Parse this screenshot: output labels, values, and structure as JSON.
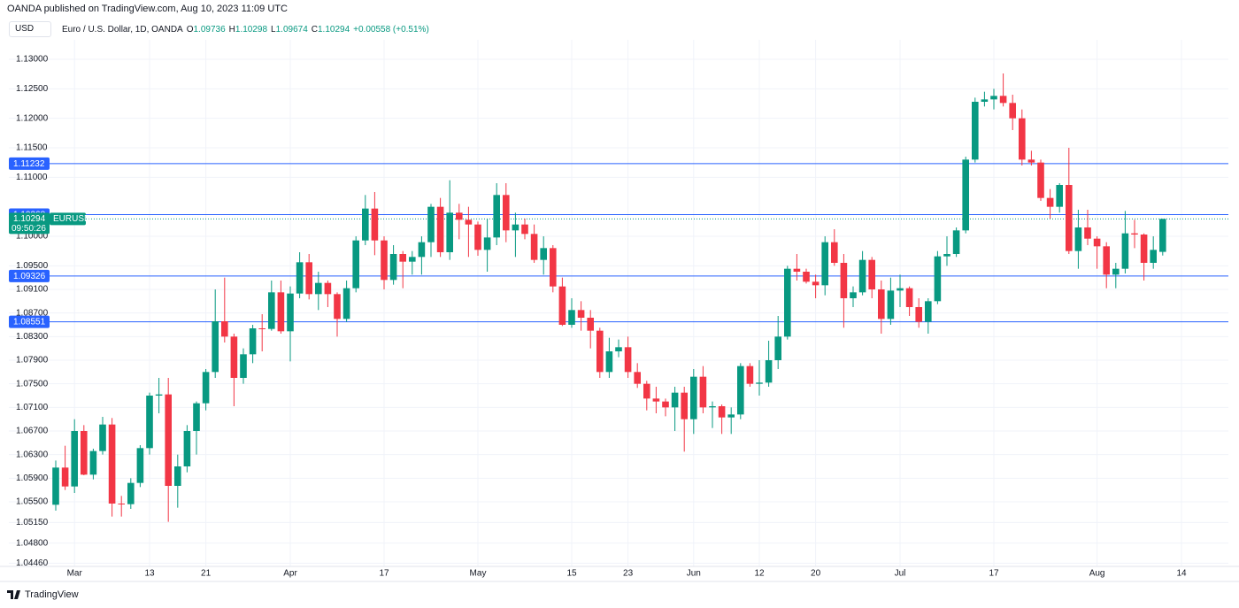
{
  "header": {
    "publisher": "OANDA published on TradingView.com, Aug 10, 2023 11:09 UTC",
    "currency": "USD",
    "symbol_description": "Euro / U.S. Dollar, 1D, OANDA",
    "ohlc_labels": [
      "O",
      "H",
      "L",
      "C"
    ],
    "change": "+0.00558 (+0.51%)"
  },
  "chart_data": {
    "type": "candlestick",
    "up_color": "#089981",
    "down_color": "#f23645",
    "grid": true,
    "ohlc": [
      [
        1.0545,
        1.062,
        1.0535,
        1.0608
      ],
      [
        1.0608,
        1.0645,
        1.057,
        1.0576
      ],
      [
        1.0576,
        1.069,
        1.0565,
        1.067
      ],
      [
        1.067,
        1.068,
        1.0595,
        1.0596
      ],
      [
        1.0596,
        1.064,
        1.0588,
        1.0636
      ],
      [
        1.0636,
        1.0694,
        1.063,
        1.0681
      ],
      [
        1.0681,
        1.0692,
        1.0525,
        1.0547
      ],
      [
        1.0547,
        1.056,
        1.0525,
        1.0546
      ],
      [
        1.0546,
        1.059,
        1.0538,
        1.0582
      ],
      [
        1.0582,
        1.0646,
        1.0575,
        1.0641
      ],
      [
        1.0641,
        1.0735,
        1.063,
        1.073
      ],
      [
        1.073,
        1.076,
        1.07,
        1.0732
      ],
      [
        1.0732,
        1.076,
        1.0516,
        1.0577
      ],
      [
        1.0577,
        1.063,
        1.054,
        1.061
      ],
      [
        1.061,
        1.068,
        1.06,
        1.067
      ],
      [
        1.067,
        1.072,
        1.063,
        1.0717
      ],
      [
        1.0717,
        1.0775,
        1.0705,
        1.077
      ],
      [
        1.077,
        1.091,
        1.076,
        1.0856
      ],
      [
        1.0856,
        1.093,
        1.082,
        1.083
      ],
      [
        1.083,
        1.0835,
        1.0712,
        1.076
      ],
      [
        1.076,
        1.081,
        1.075,
        1.08
      ],
      [
        1.08,
        1.085,
        1.0785,
        1.0844
      ],
      [
        1.0844,
        1.0868,
        1.0805,
        1.0843
      ],
      [
        1.0843,
        1.0925,
        1.084,
        1.0905
      ],
      [
        1.0905,
        1.0925,
        1.0835,
        1.0839
      ],
      [
        1.0839,
        1.0915,
        1.0788,
        1.0903
      ],
      [
        1.0903,
        1.0973,
        1.0895,
        1.0956
      ],
      [
        1.0956,
        1.097,
        1.0893,
        1.0902
      ],
      [
        1.0902,
        1.094,
        1.0875,
        1.0921
      ],
      [
        1.0921,
        1.0925,
        1.088,
        1.0902
      ],
      [
        1.0902,
        1.0905,
        1.083,
        1.086
      ],
      [
        1.086,
        1.0925,
        1.0855,
        1.0912
      ],
      [
        1.0912,
        1.1,
        1.0905,
        1.0993
      ],
      [
        1.0993,
        1.107,
        1.0985,
        1.1047
      ],
      [
        1.1047,
        1.1075,
        1.0968,
        1.0993
      ],
      [
        1.0993,
        1.1,
        1.091,
        1.0926
      ],
      [
        1.0926,
        1.0985,
        1.0918,
        1.097
      ],
      [
        1.097,
        1.0975,
        1.0912,
        1.0957
      ],
      [
        1.0957,
        1.0975,
        1.0935,
        1.0965
      ],
      [
        1.0965,
        1.1,
        1.0935,
        1.099
      ],
      [
        1.099,
        1.1055,
        1.0965,
        1.105
      ],
      [
        1.105,
        1.1065,
        1.0965,
        1.0973
      ],
      [
        1.0973,
        1.1095,
        1.096,
        1.104
      ],
      [
        1.104,
        1.1055,
        1.0995,
        1.1028
      ],
      [
        1.1028,
        1.105,
        1.0965,
        1.102
      ],
      [
        1.102,
        1.1025,
        1.0967,
        1.0977
      ],
      [
        1.0977,
        1.103,
        1.094,
        1.0998
      ],
      [
        1.0998,
        1.109,
        1.0985,
        1.107
      ],
      [
        1.107,
        1.109,
        1.099,
        1.101
      ],
      [
        1.101,
        1.104,
        1.0965,
        1.102
      ],
      [
        1.102,
        1.103,
        1.0995,
        1.1004
      ],
      [
        1.1004,
        1.102,
        1.0955,
        1.096
      ],
      [
        1.096,
        1.1,
        1.0935,
        1.098
      ],
      [
        1.098,
        1.0985,
        1.0905,
        1.0915
      ],
      [
        1.0915,
        1.093,
        1.0848,
        1.085
      ],
      [
        1.085,
        1.0895,
        1.0845,
        1.0875
      ],
      [
        1.0875,
        1.089,
        1.084,
        1.0862
      ],
      [
        1.0862,
        1.0875,
        1.081,
        1.084
      ],
      [
        1.084,
        1.0845,
        1.076,
        1.077
      ],
      [
        1.077,
        1.0828,
        1.076,
        1.0805
      ],
      [
        1.0805,
        1.0825,
        1.0795,
        1.0812
      ],
      [
        1.0812,
        1.083,
        1.076,
        1.077
      ],
      [
        1.077,
        1.0785,
        1.0743,
        1.075
      ],
      [
        1.075,
        1.0755,
        1.0705,
        1.0725
      ],
      [
        1.0725,
        1.0745,
        1.07,
        1.072
      ],
      [
        1.072,
        1.0725,
        1.0695,
        1.071
      ],
      [
        1.071,
        1.0745,
        1.067,
        1.0735
      ],
      [
        1.0735,
        1.0745,
        1.0635,
        1.069
      ],
      [
        1.069,
        1.0775,
        1.0665,
        1.0762
      ],
      [
        1.0762,
        1.078,
        1.07,
        1.071
      ],
      [
        1.071,
        1.072,
        1.0675,
        1.0712
      ],
      [
        1.0712,
        1.0715,
        1.0665,
        1.0693
      ],
      [
        1.0693,
        1.071,
        1.0665,
        1.0698
      ],
      [
        1.0698,
        1.0785,
        1.069,
        1.078
      ],
      [
        1.078,
        1.0785,
        1.0745,
        1.075
      ],
      [
        1.075,
        1.079,
        1.073,
        1.0752
      ],
      [
        1.0752,
        1.0823,
        1.0745,
        1.079
      ],
      [
        1.079,
        1.0865,
        1.0775,
        1.083
      ],
      [
        1.083,
        1.095,
        1.0825,
        1.0945
      ],
      [
        1.0945,
        1.097,
        1.0925,
        1.094
      ],
      [
        1.094,
        1.0945,
        1.092,
        1.0923
      ],
      [
        1.0923,
        1.0935,
        1.0895,
        1.0917
      ],
      [
        1.0917,
        1.1,
        1.09,
        1.099
      ],
      [
        1.099,
        1.1012,
        1.095,
        1.0955
      ],
      [
        1.0955,
        1.097,
        1.0845,
        1.0895
      ],
      [
        1.0895,
        1.0915,
        1.088,
        1.0905
      ],
      [
        1.0905,
        1.0975,
        1.09,
        1.096
      ],
      [
        1.096,
        1.0965,
        1.0895,
        1.091
      ],
      [
        1.091,
        1.0925,
        1.0835,
        1.086
      ],
      [
        1.086,
        1.093,
        1.085,
        1.0908
      ],
      [
        1.0908,
        1.0935,
        1.088,
        1.0912
      ],
      [
        1.0912,
        1.0915,
        1.0865,
        1.088
      ],
      [
        1.088,
        1.0895,
        1.0845,
        1.0855
      ],
      [
        1.0855,
        1.0895,
        1.0835,
        1.089
      ],
      [
        1.089,
        1.0975,
        1.0885,
        1.0966
      ],
      [
        1.0966,
        1.1,
        1.095,
        1.097
      ],
      [
        1.097,
        1.1015,
        1.0965,
        1.101
      ],
      [
        1.101,
        1.1135,
        1.1005,
        1.113
      ],
      [
        1.113,
        1.1235,
        1.1125,
        1.1228
      ],
      [
        1.1228,
        1.1245,
        1.122,
        1.1232
      ],
      [
        1.1232,
        1.125,
        1.1215,
        1.1238
      ],
      [
        1.1238,
        1.1276,
        1.122,
        1.1226
      ],
      [
        1.1226,
        1.124,
        1.118,
        1.12
      ],
      [
        1.12,
        1.1215,
        1.112,
        1.113
      ],
      [
        1.113,
        1.1145,
        1.112,
        1.1125
      ],
      [
        1.1125,
        1.113,
        1.106,
        1.1065
      ],
      [
        1.1065,
        1.108,
        1.103,
        1.105
      ],
      [
        1.105,
        1.109,
        1.104,
        1.1087
      ],
      [
        1.1087,
        1.115,
        1.097,
        1.0975
      ],
      [
        1.0975,
        1.1045,
        1.0945,
        1.1015
      ],
      [
        1.1015,
        1.1045,
        1.0985,
        1.0996
      ],
      [
        1.0996,
        1.1,
        1.0945,
        1.0983
      ],
      [
        1.0983,
        1.099,
        1.0912,
        1.0935
      ],
      [
        1.0935,
        1.0955,
        1.0912,
        1.0945
      ],
      [
        1.0945,
        1.1043,
        1.0937,
        1.1005
      ],
      [
        1.1005,
        1.1028,
        1.098,
        1.1003
      ],
      [
        1.1003,
        1.1005,
        1.0925,
        1.0955
      ],
      [
        1.0955,
        1.1,
        1.0945,
        1.0977
      ],
      [
        1.09736,
        1.10298,
        1.09674,
        1.10294
      ]
    ],
    "ylim": [
      1.0418,
      1.1333
    ],
    "yticks": [
      {
        "value": 1.13,
        "label": "1.13000"
      },
      {
        "value": 1.125,
        "label": "1.12500"
      },
      {
        "value": 1.12,
        "label": "1.12000"
      },
      {
        "value": 1.115,
        "label": "1.11500"
      },
      {
        "value": 1.11,
        "label": "1.11000"
      },
      {
        "value": 1.1,
        "label": "1.10000"
      },
      {
        "value": 1.095,
        "label": "1.09500"
      },
      {
        "value": 1.091,
        "label": "1.09100"
      },
      {
        "value": 1.087,
        "label": "1.08700"
      },
      {
        "value": 1.083,
        "label": "1.08300"
      },
      {
        "value": 1.079,
        "label": "1.07900"
      },
      {
        "value": 1.075,
        "label": "1.07500"
      },
      {
        "value": 1.071,
        "label": "1.07100"
      },
      {
        "value": 1.067,
        "label": "1.06700"
      },
      {
        "value": 1.063,
        "label": "1.06300"
      },
      {
        "value": 1.059,
        "label": "1.05900"
      },
      {
        "value": 1.055,
        "label": "1.05500"
      },
      {
        "value": 1.0515,
        "label": "1.05150"
      },
      {
        "value": 1.048,
        "label": "1.04800"
      },
      {
        "value": 1.0446,
        "label": "1.04460"
      }
    ],
    "xlim": [
      -5,
      125
    ],
    "xticks": [
      {
        "value": 2,
        "label": "Mar"
      },
      {
        "value": 10,
        "label": "13"
      },
      {
        "value": 16,
        "label": "21"
      },
      {
        "value": 25,
        "label": "Apr"
      },
      {
        "value": 35,
        "label": "17"
      },
      {
        "value": 45,
        "label": "May"
      },
      {
        "value": 55,
        "label": "15"
      },
      {
        "value": 61,
        "label": "23"
      },
      {
        "value": 68,
        "label": "Jun"
      },
      {
        "value": 75,
        "label": "12"
      },
      {
        "value": 81,
        "label": "20"
      },
      {
        "value": 90,
        "label": "Jul"
      },
      {
        "value": 100,
        "label": "17"
      },
      {
        "value": 111,
        "label": "Aug"
      },
      {
        "value": 120,
        "label": "14"
      }
    ],
    "levels": [
      1.11232,
      1.10368,
      1.09326,
      1.08551
    ],
    "level_color": "#2962ff",
    "symbol": "EURUSD",
    "countdown": "09:50:26"
  },
  "footer": {
    "brand": "TradingView"
  }
}
